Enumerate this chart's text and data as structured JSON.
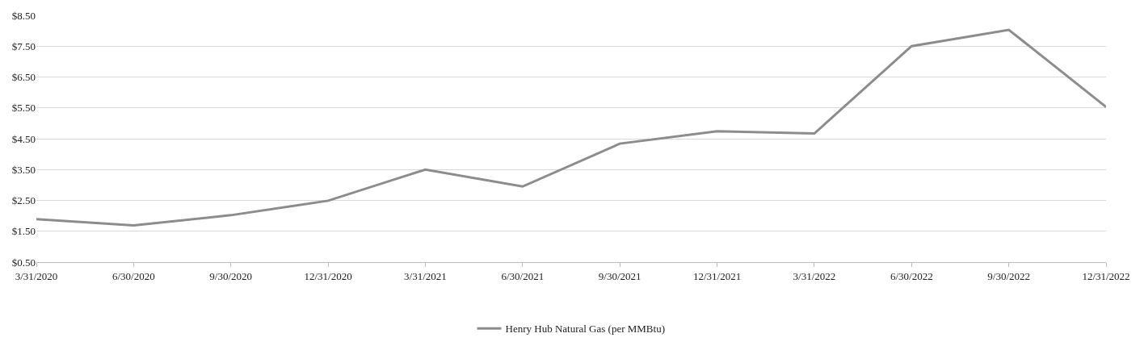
{
  "chart_data": {
    "type": "line",
    "categories": [
      "3/31/2020",
      "6/30/2020",
      "9/30/2020",
      "12/31/2020",
      "3/31/2021",
      "6/30/2021",
      "9/30/2021",
      "12/31/2021",
      "3/31/2022",
      "6/30/2022",
      "9/30/2022",
      "12/31/2022"
    ],
    "series": [
      {
        "name": "Henry Hub Natural Gas (per MMBtu)",
        "color": "#8c8c8c",
        "values": [
          1.89,
          1.69,
          2.02,
          2.49,
          3.5,
          2.95,
          4.34,
          4.74,
          4.67,
          7.5,
          8.03,
          5.53
        ]
      }
    ],
    "ylim": [
      0.5,
      8.5
    ],
    "yticks": [
      {
        "value": 0.5,
        "label": "$0.50"
      },
      {
        "value": 1.5,
        "label": "$1.50"
      },
      {
        "value": 2.5,
        "label": "$2.50"
      },
      {
        "value": 3.5,
        "label": "$3.50"
      },
      {
        "value": 4.5,
        "label": "$4.50"
      },
      {
        "value": 5.5,
        "label": "$5.50"
      },
      {
        "value": 6.5,
        "label": "$6.50"
      },
      {
        "value": 7.5,
        "label": "$7.50"
      },
      {
        "value": 8.5,
        "label": "$8.50"
      }
    ],
    "grid": "y",
    "legend": "bottom",
    "marker": "none",
    "line_style": "solid"
  }
}
